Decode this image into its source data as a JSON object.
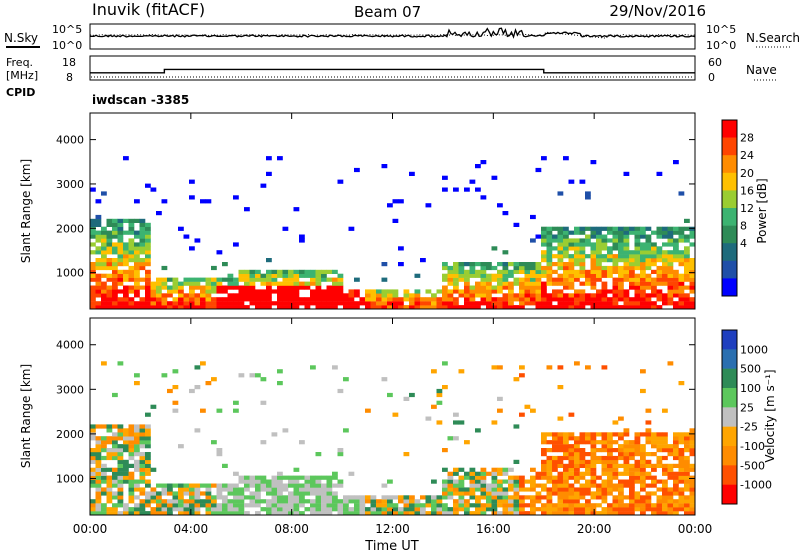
{
  "header": {
    "station": "Inuvik (fitACF)",
    "beam": "Beam 07",
    "date": "29/Nov/2016"
  },
  "noise_panel": {
    "left_label": "N.Sky",
    "right_label": "N.Search",
    "left_ticks": [
      "10^5",
      "10^0"
    ],
    "right_ticks": [
      "10^5",
      "10^0"
    ]
  },
  "freq_panel": {
    "label_line1": "Freq.",
    "label_line2": "[MHz]",
    "left_ticks": [
      "18",
      "8"
    ],
    "right_ticks": [
      "60",
      "0"
    ],
    "right_label": "Nave",
    "cpid_label": "CPID",
    "cpid_value": "iwdscan -3385"
  },
  "x_axis": {
    "label": "Time UT",
    "ticks": [
      "00:00",
      "04:00",
      "08:00",
      "12:00",
      "16:00",
      "20:00",
      "00:00"
    ]
  },
  "chart_data": [
    {
      "type": "heatmap",
      "name": "power",
      "ylabel": "Slant Range [km]",
      "ylim": [
        180,
        4600
      ],
      "yticks": [
        "4000",
        "3000",
        "2000",
        "1000"
      ],
      "xlim_hours": [
        0,
        24
      ],
      "colorbar": {
        "label": "Power [dB]",
        "ticks": [
          "28",
          "24",
          "20",
          "16",
          "12",
          "8",
          "4"
        ],
        "colors": [
          "#ff0000",
          "#ff4500",
          "#ff8c00",
          "#ffc000",
          "#9acd32",
          "#3cb371",
          "#2e8b57",
          "#1e6b7c",
          "#1f4fa8",
          "#0000ff"
        ]
      }
    },
    {
      "type": "heatmap",
      "name": "velocity",
      "ylabel": "Slant Range [km]",
      "ylim": [
        180,
        4600
      ],
      "yticks": [
        "4000",
        "3000",
        "2000",
        "1000"
      ],
      "xlim_hours": [
        0,
        24
      ],
      "colorbar": {
        "label": "Velocity [m s⁻¹]",
        "ticks": [
          "1000",
          "500",
          "100",
          "25",
          "-25",
          "-100",
          "-500",
          "-1000"
        ],
        "colors": [
          "#1f3fbf",
          "#2a6fb0",
          "#2e8b57",
          "#5cc75c",
          "#c0c0c0",
          "#ffa500",
          "#ff8c00",
          "#ff5000",
          "#ff0000"
        ]
      }
    }
  ]
}
